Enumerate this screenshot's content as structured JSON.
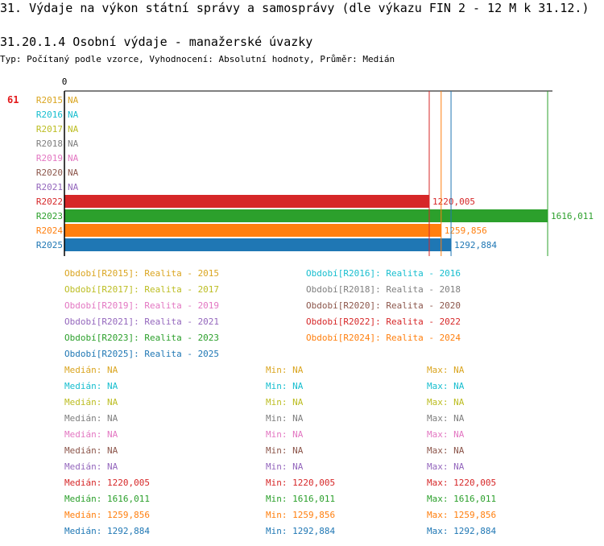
{
  "page": {
    "title": "31. Výdaje na výkon státní správy a samosprávy (dle výkazu FIN 2 - 12 M k 31.12.)",
    "subtitle": "31.20.1.4 Osobní výdaje - manažerské úvazky",
    "type_line": "Typ: Počítaný podle vzorce, Vyhodnocení: Absolutní hodnoty, Průměr: Medián",
    "row_number": "61"
  },
  "chart_data": {
    "type": "bar",
    "orientation": "horizontal",
    "axis_zero_label": "0",
    "xlim": [
      0,
      1616.011
    ],
    "na_label": "NA",
    "categories": [
      "R2015",
      "R2016",
      "R2017",
      "R2018",
      "R2019",
      "R2020",
      "R2021",
      "R2022",
      "R2023",
      "R2024",
      "R2025"
    ],
    "values": [
      null,
      null,
      null,
      null,
      null,
      null,
      null,
      1220.005,
      1616.011,
      1259.856,
      1292.884
    ],
    "value_labels": [
      "NA",
      "NA",
      "NA",
      "NA",
      "NA",
      "NA",
      "NA",
      "1220,005",
      "1616,011",
      "1259,856",
      "1292,884"
    ],
    "colors": [
      "#daa520",
      "#17becf",
      "#bcbd22",
      "#7f7f7f",
      "#e377c2",
      "#8c564b",
      "#9467bd",
      "#d62728",
      "#2ca02c",
      "#ff7f0e",
      "#1f77b4"
    ],
    "legend": [
      "Období[R2015]: Realita - 2015",
      "Období[R2016]: Realita - 2016",
      "Období[R2017]: Realita - 2017",
      "Období[R2018]: Realita - 2018",
      "Období[R2019]: Realita - 2019",
      "Období[R2020]: Realita - 2020",
      "Období[R2021]: Realita - 2021",
      "Období[R2022]: Realita - 2022",
      "Období[R2023]: Realita - 2023",
      "Období[R2024]: Realita - 2024",
      "Období[R2025]: Realita - 2025"
    ],
    "stats": [
      {
        "median": "Medián: NA",
        "min": "Min: NA",
        "max": "Max: NA"
      },
      {
        "median": "Medián: NA",
        "min": "Min: NA",
        "max": "Max: NA"
      },
      {
        "median": "Medián: NA",
        "min": "Min: NA",
        "max": "Max: NA"
      },
      {
        "median": "Medián: NA",
        "min": "Min: NA",
        "max": "Max: NA"
      },
      {
        "median": "Medián: NA",
        "min": "Min: NA",
        "max": "Max: NA"
      },
      {
        "median": "Medián: NA",
        "min": "Min: NA",
        "max": "Max: NA"
      },
      {
        "median": "Medián: NA",
        "min": "Min: NA",
        "max": "Max: NA"
      },
      {
        "median": "Medián: 1220,005",
        "min": "Min: 1220,005",
        "max": "Max: 1220,005"
      },
      {
        "median": "Medián: 1616,011",
        "min": "Min: 1616,011",
        "max": "Max: 1616,011"
      },
      {
        "median": "Medián: 1259,856",
        "min": "Min: 1259,856",
        "max": "Max: 1259,856"
      },
      {
        "median": "Medián: 1292,884",
        "min": "Min: 1292,884",
        "max": "Max: 1292,884"
      }
    ]
  }
}
